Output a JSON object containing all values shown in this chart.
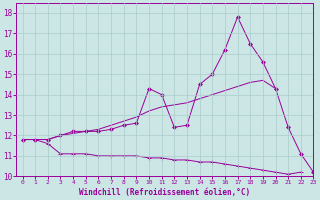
{
  "xlabel": "Windchill (Refroidissement éolien,°C)",
  "x_values": [
    0,
    1,
    2,
    3,
    4,
    5,
    6,
    7,
    8,
    9,
    10,
    11,
    12,
    13,
    14,
    15,
    16,
    17,
    18,
    19,
    20,
    21,
    22,
    23
  ],
  "line1": [
    11.8,
    11.8,
    11.6,
    11.1,
    11.1,
    11.1,
    11.0,
    11.0,
    11.0,
    11.0,
    10.9,
    10.9,
    10.8,
    10.8,
    10.7,
    10.7,
    10.6,
    10.5,
    10.4,
    10.3,
    10.2,
    10.1,
    10.2,
    null
  ],
  "line2": [
    11.8,
    11.8,
    11.8,
    12.0,
    12.2,
    12.2,
    12.2,
    12.3,
    12.5,
    12.6,
    14.3,
    14.0,
    12.4,
    12.5,
    14.5,
    15.0,
    16.2,
    17.8,
    16.5,
    15.6,
    14.3,
    12.4,
    11.1,
    10.2
  ],
  "line3": [
    11.8,
    11.8,
    11.8,
    12.0,
    12.1,
    12.2,
    12.3,
    12.5,
    12.7,
    12.9,
    13.2,
    13.4,
    13.5,
    13.6,
    13.8,
    14.0,
    14.2,
    14.4,
    14.6,
    14.7,
    14.3,
    null,
    null,
    null
  ],
  "line_color": "#990099",
  "bg_color": "#cce6e6",
  "grid_color": "#aacccc",
  "ylim": [
    10,
    18.5
  ],
  "yticks": [
    10,
    11,
    12,
    13,
    14,
    15,
    16,
    17,
    18
  ],
  "xlim": [
    -0.5,
    23
  ],
  "xticks": [
    0,
    1,
    2,
    3,
    4,
    5,
    6,
    7,
    8,
    9,
    10,
    11,
    12,
    13,
    14,
    15,
    16,
    17,
    18,
    19,
    20,
    21,
    22,
    23
  ]
}
